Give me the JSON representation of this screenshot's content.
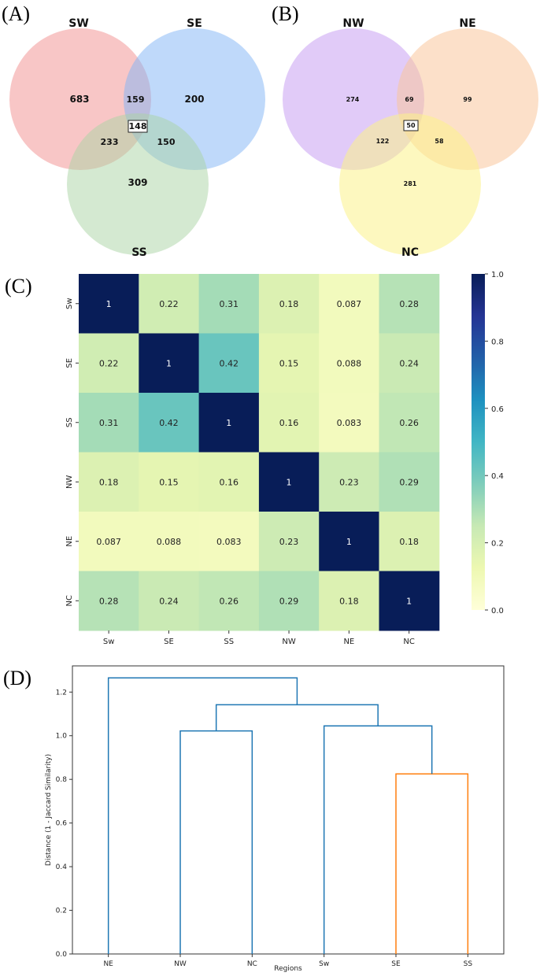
{
  "panels": {
    "a": "(A)",
    "b": "(B)",
    "c": "(C)",
    "d": "(D)"
  },
  "venn_a": {
    "sets": [
      "SW",
      "SE",
      "SS"
    ],
    "colors": [
      "#f28e8e",
      "#7fb3f5",
      "#a9d3a3"
    ],
    "regions": {
      "only_1": "683",
      "only_2": "200",
      "only_3": "309",
      "r12": "159",
      "r13": "233",
      "r23": "150",
      "r123": "148"
    }
  },
  "venn_b": {
    "sets": [
      "NW",
      "NE",
      "NC"
    ],
    "colors": [
      "#c8a0f2",
      "#f9c79c",
      "#fbf38a"
    ],
    "regions": {
      "only_1": "274",
      "only_2": "99",
      "only_3": "281",
      "r12": "69",
      "r13": "122",
      "r23": "58",
      "r123": "50"
    }
  },
  "chart_data": [
    {
      "type": "heatmap",
      "title": "",
      "rows": [
        "Sw",
        "SE",
        "SS",
        "NW",
        "NE",
        "NC"
      ],
      "columns": [
        "Sw",
        "SE",
        "SS",
        "NW",
        "NE",
        "NC"
      ],
      "values": [
        [
          1,
          0.22,
          0.31,
          0.18,
          0.087,
          0.28
        ],
        [
          0.22,
          1,
          0.42,
          0.15,
          0.088,
          0.24
        ],
        [
          0.31,
          0.42,
          1,
          0.16,
          0.083,
          0.26
        ],
        [
          0.18,
          0.15,
          0.16,
          1,
          0.23,
          0.29
        ],
        [
          0.087,
          0.088,
          0.083,
          0.23,
          1,
          0.18
        ],
        [
          0.28,
          0.24,
          0.26,
          0.29,
          0.18,
          1
        ]
      ],
      "cell_labels": [
        [
          "1",
          "0.22",
          "0.31",
          "0.18",
          "0.087",
          "0.28"
        ],
        [
          "0.22",
          "1",
          "0.42",
          "0.15",
          "0.088",
          "0.24"
        ],
        [
          "0.31",
          "0.42",
          "1",
          "0.16",
          "0.083",
          "0.26"
        ],
        [
          "0.18",
          "0.15",
          "0.16",
          "1",
          "0.23",
          "0.29"
        ],
        [
          "0.087",
          "0.088",
          "0.083",
          "0.23",
          "1",
          "0.18"
        ],
        [
          "0.28",
          "0.24",
          "0.26",
          "0.29",
          "0.18",
          "1"
        ]
      ],
      "colorbar": {
        "range": [
          0,
          1
        ],
        "ticks": [
          "0.0",
          "0.2",
          "0.4",
          "0.6",
          "0.8",
          "1.0"
        ],
        "colormap": "YlGnBu"
      }
    },
    {
      "type": "dendrogram",
      "title": "",
      "xlabel": "Regions",
      "ylabel": "Distance (1 - Jaccard Similarity)",
      "leaves": [
        "NE",
        "NW",
        "NC",
        "Sw",
        "SE",
        "SS"
      ],
      "ylim": [
        0,
        1.32
      ],
      "yticks": [
        "0.0",
        "0.2",
        "0.4",
        "0.6",
        "0.8",
        "1.0",
        "1.2"
      ],
      "merges": [
        {
          "left": "SE",
          "right": "SS",
          "height": 0.825,
          "color": "#ff7f0e"
        },
        {
          "left": "Sw",
          "right": "SE+SS",
          "height": 1.045,
          "color": "#1f77b4"
        },
        {
          "left": "NW",
          "right": "NC",
          "height": 1.022,
          "color": "#1f77b4"
        },
        {
          "left": "NW+NC",
          "right": "Sw+SE+SS",
          "height": 1.142,
          "color": "#1f77b4"
        },
        {
          "left": "NE",
          "right": "rest",
          "height": 1.265,
          "color": "#1f77b4"
        }
      ]
    }
  ]
}
